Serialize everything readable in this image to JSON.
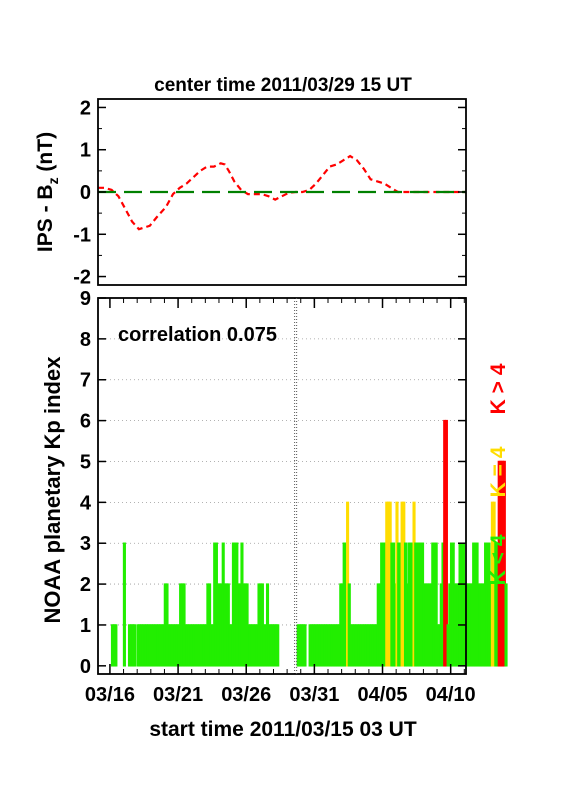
{
  "chart_data": [
    {
      "type": "line",
      "title": "center time 2011/03/29 15 UT",
      "ylabel_main": "IPS - B",
      "ylabel_sub": "z",
      "ylabel_unit": " (nT)",
      "ylim": [
        -2.2,
        2.2
      ],
      "yticks": [
        2,
        1,
        0,
        -1,
        -2
      ],
      "x_range_days": [
        0,
        27
      ],
      "series": [
        {
          "color": "#ff0000",
          "style": "dashed",
          "x": [
            0,
            0.5,
            1,
            1.5,
            2,
            2.5,
            3,
            3.3,
            3.8,
            4.3,
            5,
            5.5,
            6,
            6.5,
            7,
            7.5,
            8,
            8.5,
            9,
            9.3,
            9.6,
            10,
            10.5,
            11,
            11.5,
            12,
            12.5,
            13,
            13.5,
            14,
            14.5,
            15,
            15.5,
            16,
            16.5,
            17,
            17.5,
            18,
            18.5,
            19,
            19.5,
            20,
            20.5,
            21,
            21.5,
            22,
            22.5,
            23,
            23.5,
            24,
            24.5,
            25,
            25.5,
            26,
            26.5,
            27
          ],
          "values": [
            0.1,
            0.1,
            0.05,
            -0.1,
            -0.4,
            -0.7,
            -0.88,
            -0.85,
            -0.8,
            -0.6,
            -0.35,
            -0.05,
            0.1,
            0.2,
            0.35,
            0.5,
            0.6,
            0.6,
            0.68,
            0.65,
            0.5,
            0.25,
            0.05,
            -0.05,
            -0.05,
            -0.05,
            -0.1,
            -0.18,
            -0.1,
            -0.02,
            0.0,
            0.0,
            0.05,
            0.2,
            0.4,
            0.6,
            0.65,
            0.75,
            0.85,
            0.75,
            0.55,
            0.3,
            0.25,
            0.2,
            0.1,
            0.0,
            0.0,
            0.0,
            0.0,
            0.0,
            0.0,
            0.0,
            0.0,
            0.0,
            0.0,
            0.0
          ]
        },
        {
          "color": "#008000",
          "style": "long-dash",
          "x": [
            0,
            27
          ],
          "values": [
            0,
            0
          ]
        }
      ]
    },
    {
      "type": "bar",
      "annotation": "correlation 0.075",
      "ylabel": "NOAA planetary Kp index",
      "xlabel": "start time 2011/03/15 03 UT",
      "ylim": [
        -0.2,
        9
      ],
      "yticks": [
        9,
        8,
        7,
        6,
        5,
        4,
        3,
        2,
        1,
        0
      ],
      "xticks": [
        "03/16",
        "03/21",
        "03/26",
        "03/31",
        "04/05",
        "04/10"
      ],
      "xtick_days": [
        0.875,
        5.875,
        10.875,
        15.875,
        20.875,
        25.875
      ],
      "x_range_days": [
        0,
        27
      ],
      "bin_hours": 3,
      "center_line_day": 14.5,
      "legend": [
        {
          "label": "K < 4",
          "color": "#22ee00"
        },
        {
          "label": "K = 4",
          "color": "#ffdd00"
        },
        {
          "label": "K > 4",
          "color": "#ff0000"
        }
      ],
      "colors": {
        "low": "#22ee00",
        "mid": "#ffdd00",
        "high": "#ff0000"
      },
      "kp_values": [
        0,
        0,
        0,
        0,
        0,
        0,
        0,
        0,
        1,
        1,
        1,
        0,
        0,
        0,
        0,
        3,
        0,
        0,
        1,
        1,
        1,
        1,
        0,
        1,
        1,
        1,
        1,
        1,
        1,
        1,
        1,
        1,
        1,
        1,
        1,
        1,
        1,
        1,
        1,
        2,
        2,
        1,
        1,
        1,
        1,
        1,
        1,
        1,
        2,
        2,
        2,
        1,
        1,
        1,
        1,
        1,
        1,
        1,
        1,
        1,
        1,
        1,
        1,
        1,
        2,
        2,
        1,
        1,
        3,
        3,
        2,
        2,
        2,
        3,
        2,
        2,
        2,
        1,
        1,
        3,
        3,
        3,
        2,
        2,
        3,
        2,
        2,
        2,
        1,
        1,
        1,
        1,
        1,
        1,
        2,
        2,
        2,
        1,
        1,
        2,
        1,
        1,
        1,
        1,
        1,
        1,
        0,
        0,
        0,
        0,
        0,
        0,
        0,
        0,
        0,
        0,
        0,
        1,
        1,
        1,
        1,
        1,
        0,
        0,
        1,
        1,
        1,
        1,
        1,
        1,
        1,
        1,
        1,
        1,
        1,
        1,
        1,
        1,
        1,
        1,
        1,
        1,
        2,
        2,
        3,
        3,
        4,
        2,
        1,
        1,
        1,
        1,
        1,
        1,
        1,
        1,
        1,
        1,
        1,
        1,
        1,
        1,
        1,
        1,
        2,
        2,
        3,
        3,
        3,
        4,
        4,
        4,
        3,
        3,
        2,
        4,
        3,
        3,
        4,
        4,
        3,
        2,
        3,
        3,
        3,
        4,
        3,
        3,
        3,
        3,
        3,
        2,
        2,
        2,
        2,
        2,
        3,
        3,
        3,
        1,
        1,
        2,
        3,
        6,
        6,
        1,
        2,
        3,
        3,
        2,
        2,
        2,
        3,
        3,
        3,
        2,
        2,
        2,
        2,
        2,
        3,
        3,
        3,
        2,
        2,
        2,
        2,
        3,
        3,
        3,
        2,
        4,
        4,
        3,
        3,
        5,
        5,
        5,
        5,
        2
      ]
    }
  ]
}
